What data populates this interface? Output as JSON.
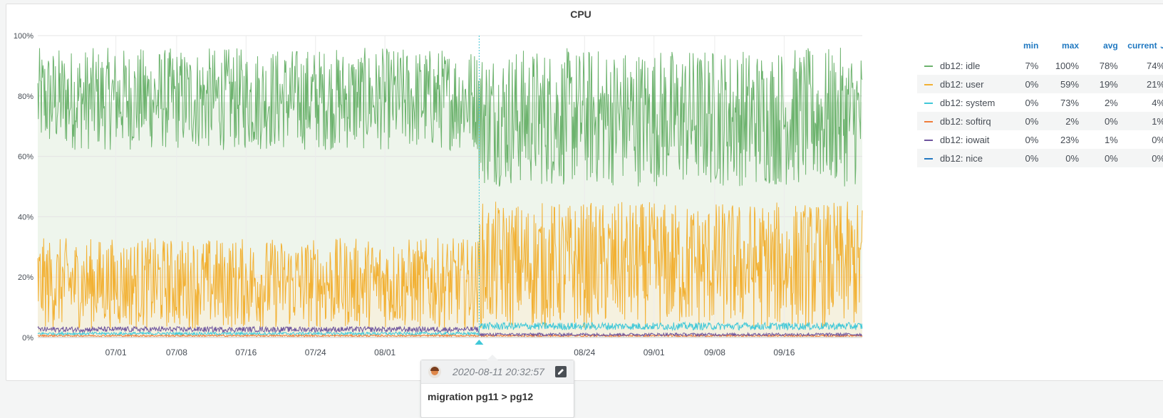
{
  "panel": {
    "title": "CPU"
  },
  "chart_data": {
    "type": "line",
    "title": "CPU",
    "xlabel": "",
    "ylabel": "",
    "ylim": [
      0,
      100
    ],
    "y_ticks": [
      "0%",
      "20%",
      "40%",
      "60%",
      "80%",
      "100%"
    ],
    "x_range": [
      "2020-06-22",
      "2020-09-25"
    ],
    "x_ticks": [
      {
        "date": "2020-07-01",
        "label": "07/01"
      },
      {
        "date": "2020-07-08",
        "label": "07/08"
      },
      {
        "date": "2020-07-16",
        "label": "07/16"
      },
      {
        "date": "2020-07-24",
        "label": "07/24"
      },
      {
        "date": "2020-08-01",
        "label": "08/01"
      },
      {
        "date": "2020-08-24",
        "label": "08/24"
      },
      {
        "date": "2020-09-01",
        "label": "09/01"
      },
      {
        "date": "2020-09-08",
        "label": "09/08"
      },
      {
        "date": "2020-09-16",
        "label": "09/16"
      }
    ],
    "grid": true,
    "stacked": false,
    "legend_position": "right",
    "annotation": {
      "date": "2020-08-11 20:32:57",
      "text": "migration pg11 > pg12"
    },
    "series": [
      {
        "name": "db12: idle",
        "color": "#6db36e",
        "min": 7,
        "max": 100,
        "avg": 78,
        "current": 74
      },
      {
        "name": "db12: user",
        "color": "#f2b134",
        "min": 0,
        "max": 59,
        "avg": 19,
        "current": 21
      },
      {
        "name": "db12: system",
        "color": "#40c8d8",
        "min": 0,
        "max": 73,
        "avg": 2,
        "current": 4
      },
      {
        "name": "db12: softirq",
        "color": "#f07c3a",
        "min": 0,
        "max": 2,
        "avg": 0,
        "current": 1
      },
      {
        "name": "db12: iowait",
        "color": "#6e559e",
        "min": 0,
        "max": 23,
        "avg": 1,
        "current": 0
      },
      {
        "name": "db12: nice",
        "color": "#2478c2",
        "min": 0,
        "max": 0,
        "avg": 0,
        "current": 0
      }
    ]
  },
  "legend": {
    "columns": [
      "min",
      "max",
      "avg",
      "current"
    ],
    "sort_indicator": "⌄",
    "rows": [
      {
        "name": "db12: idle",
        "min": "7%",
        "max": "100%",
        "avg": "78%",
        "current": "74%"
      },
      {
        "name": "db12: user",
        "min": "0%",
        "max": "59%",
        "avg": "19%",
        "current": "21%"
      },
      {
        "name": "db12: system",
        "min": "0%",
        "max": "73%",
        "avg": "2%",
        "current": "4%"
      },
      {
        "name": "db12: softirq",
        "min": "0%",
        "max": "2%",
        "avg": "0%",
        "current": "1%"
      },
      {
        "name": "db12: iowait",
        "min": "0%",
        "max": "23%",
        "avg": "1%",
        "current": "0%"
      },
      {
        "name": "db12: nice",
        "min": "0%",
        "max": "0%",
        "avg": "0%",
        "current": "0%"
      }
    ]
  },
  "tooltip": {
    "time": "2020-08-11 20:32:57",
    "text": "migration pg11 > pg12",
    "avatar_icon": "user-avatar-icon",
    "edit_icon": "pencil-icon"
  }
}
